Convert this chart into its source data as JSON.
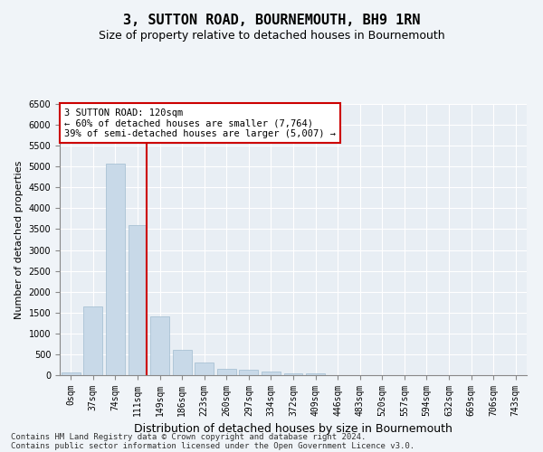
{
  "title": "3, SUTTON ROAD, BOURNEMOUTH, BH9 1RN",
  "subtitle": "Size of property relative to detached houses in Bournemouth",
  "xlabel": "Distribution of detached houses by size in Bournemouth",
  "ylabel": "Number of detached properties",
  "bar_color": "#c8d9e8",
  "bar_edge_color": "#a0bcd0",
  "bg_color": "#e8eef4",
  "grid_color": "#ffffff",
  "fig_bg_color": "#f0f4f8",
  "categories": [
    "0sqm",
    "37sqm",
    "74sqm",
    "111sqm",
    "149sqm",
    "186sqm",
    "223sqm",
    "260sqm",
    "297sqm",
    "334sqm",
    "372sqm",
    "409sqm",
    "446sqm",
    "483sqm",
    "520sqm",
    "557sqm",
    "594sqm",
    "632sqm",
    "669sqm",
    "706sqm",
    "743sqm"
  ],
  "bar_values": [
    75,
    1650,
    5080,
    3600,
    1400,
    610,
    300,
    150,
    130,
    90,
    50,
    40,
    10,
    5,
    2,
    1,
    0,
    0,
    0,
    0,
    0
  ],
  "red_line_index": 3,
  "red_line_color": "#cc0000",
  "annotation_text": "3 SUTTON ROAD: 120sqm\n← 60% of detached houses are smaller (7,764)\n39% of semi-detached houses are larger (5,007) →",
  "annotation_box_color": "#cc0000",
  "ylim": [
    0,
    6500
  ],
  "yticks": [
    0,
    500,
    1000,
    1500,
    2000,
    2500,
    3000,
    3500,
    4000,
    4500,
    5000,
    5500,
    6000,
    6500
  ],
  "footer_line1": "Contains HM Land Registry data © Crown copyright and database right 2024.",
  "footer_line2": "Contains public sector information licensed under the Open Government Licence v3.0.",
  "title_fontsize": 11,
  "subtitle_fontsize": 9,
  "xlabel_fontsize": 9,
  "ylabel_fontsize": 8,
  "tick_fontsize": 7,
  "annotation_fontsize": 7.5,
  "footer_fontsize": 6.5
}
